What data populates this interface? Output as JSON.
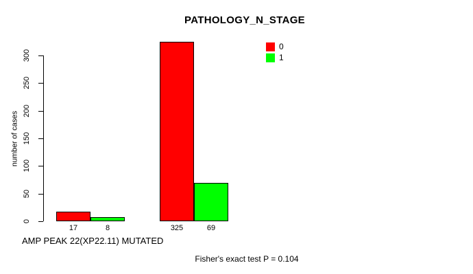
{
  "chart_data": {
    "type": "bar",
    "title": "PATHOLOGY_N_STAGE",
    "ylabel": "number of cases",
    "xlabel": "AMP PEAK 22(XP22.11) MUTATED",
    "footnote": "Fisher's exact test P = 0.104",
    "categories": [
      "",
      ""
    ],
    "series": [
      {
        "name": "0",
        "color": "#FF0000",
        "values": [
          17,
          325
        ]
      },
      {
        "name": "1",
        "color": "#00FF00",
        "values": [
          8,
          69
        ]
      }
    ],
    "yticks": [
      0,
      50,
      100,
      150,
      200,
      250,
      300
    ],
    "ylim": [
      0,
      300
    ],
    "grid": false,
    "show_bar_value_labels": true,
    "legend_position": "top-right-inside"
  },
  "colors": {
    "background": "#FFFFFF",
    "axis": "#000000",
    "text": "#000000",
    "bar_border": "#000000"
  }
}
